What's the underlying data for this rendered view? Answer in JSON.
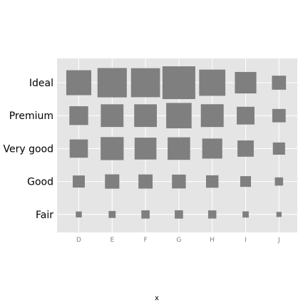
{
  "chart_data": {
    "type": "heatmap",
    "title": "",
    "xlabel": "x",
    "ylabel": "",
    "x_categories": [
      "D",
      "E",
      "F",
      "G",
      "H",
      "I",
      "J"
    ],
    "y_categories": [
      "Fair",
      "Good",
      "Very good",
      "Premium",
      "Ideal"
    ],
    "grid": true,
    "legend": "none",
    "encoding": "square size proportional to count",
    "cells": [
      {
        "x": "D",
        "y": "Fair",
        "value": 163
      },
      {
        "x": "E",
        "y": "Fair",
        "value": 224
      },
      {
        "x": "F",
        "y": "Fair",
        "value": 312
      },
      {
        "x": "G",
        "y": "Fair",
        "value": 314
      },
      {
        "x": "H",
        "y": "Fair",
        "value": 303
      },
      {
        "x": "I",
        "y": "Fair",
        "value": 175
      },
      {
        "x": "J",
        "y": "Fair",
        "value": 119
      },
      {
        "x": "D",
        "y": "Good",
        "value": 662
      },
      {
        "x": "E",
        "y": "Good",
        "value": 933
      },
      {
        "x": "F",
        "y": "Good",
        "value": 909
      },
      {
        "x": "G",
        "y": "Good",
        "value": 871
      },
      {
        "x": "H",
        "y": "Good",
        "value": 702
      },
      {
        "x": "I",
        "y": "Good",
        "value": 522
      },
      {
        "x": "J",
        "y": "Good",
        "value": 307
      },
      {
        "x": "D",
        "y": "Very good",
        "value": 1513
      },
      {
        "x": "E",
        "y": "Very good",
        "value": 2400
      },
      {
        "x": "F",
        "y": "Very good",
        "value": 2164
      },
      {
        "x": "G",
        "y": "Very good",
        "value": 2299
      },
      {
        "x": "H",
        "y": "Very good",
        "value": 1824
      },
      {
        "x": "I",
        "y": "Very good",
        "value": 1204
      },
      {
        "x": "J",
        "y": "Very good",
        "value": 678
      },
      {
        "x": "D",
        "y": "Premium",
        "value": 1603
      },
      {
        "x": "E",
        "y": "Premium",
        "value": 2337
      },
      {
        "x": "F",
        "y": "Premium",
        "value": 2331
      },
      {
        "x": "G",
        "y": "Premium",
        "value": 2924
      },
      {
        "x": "H",
        "y": "Premium",
        "value": 2360
      },
      {
        "x": "I",
        "y": "Premium",
        "value": 1428
      },
      {
        "x": "J",
        "y": "Premium",
        "value": 808
      },
      {
        "x": "D",
        "y": "Ideal",
        "value": 2834
      },
      {
        "x": "E",
        "y": "Ideal",
        "value": 3903
      },
      {
        "x": "F",
        "y": "Ideal",
        "value": 3826
      },
      {
        "x": "G",
        "y": "Ideal",
        "value": 4884
      },
      {
        "x": "H",
        "y": "Ideal",
        "value": 3115
      },
      {
        "x": "I",
        "y": "Ideal",
        "value": 2093
      },
      {
        "x": "J",
        "y": "Ideal",
        "value": 896
      }
    ]
  },
  "colors": {
    "panel_background": "#e5e5e5",
    "grid_line": "#ffffff",
    "square_fill": "#7f7f7f",
    "x_tick_text": "#7f7f7f",
    "y_tick_text": "#000000"
  }
}
